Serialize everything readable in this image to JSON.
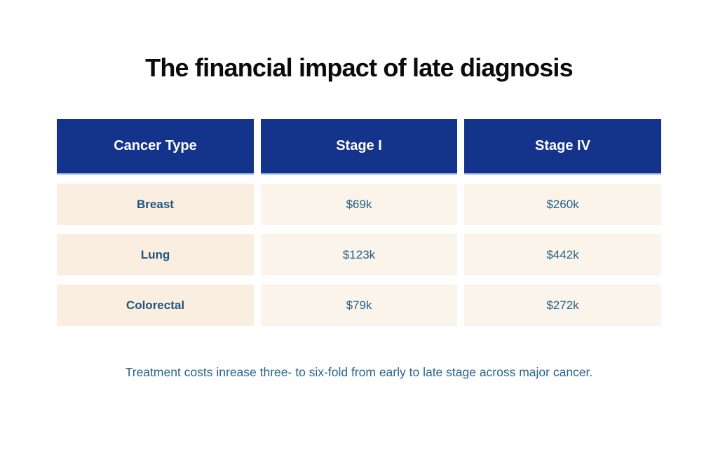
{
  "title": "The financial impact of late diagnosis",
  "table": {
    "headers": [
      "Cancer Type",
      "Stage I",
      "Stage IV"
    ],
    "rows": [
      {
        "label": "Breast",
        "stage1": "$69k",
        "stage4": "$260k"
      },
      {
        "label": "Lung",
        "stage1": "$123k",
        "stage4": "$442k"
      },
      {
        "label": "Colorectal",
        "stage1": "$79k",
        "stage4": "$272k"
      }
    ]
  },
  "footnote": "Treatment costs inrease three- to six-fold from early to late stage across major cancer.",
  "colors": {
    "header_background": "#14338b",
    "header_text": "#ffffff",
    "header_border_bottom": "#8aa5d6",
    "label_cell_background": "#faeee1",
    "value_cell_background": "#faf4eb",
    "label_text": "#1e567f",
    "value_text": "#236088",
    "footnote_text": "#29648f",
    "title_text": "#0b0b0b",
    "page_background": "#ffffff"
  },
  "chart_data": {
    "type": "table",
    "title": "The financial impact of late diagnosis",
    "columns": [
      "Cancer Type",
      "Stage I",
      "Stage IV"
    ],
    "rows": [
      [
        "Breast",
        "$69k",
        "$260k"
      ],
      [
        "Lung",
        "$123k",
        "$442k"
      ],
      [
        "Colorectal",
        "$79k",
        "$272k"
      ]
    ],
    "values_usd_thousands": {
      "Breast": {
        "stage_i": 69,
        "stage_iv": 260
      },
      "Lung": {
        "stage_i": 123,
        "stage_iv": 442
      },
      "Colorectal": {
        "stage_i": 79,
        "stage_iv": 272
      }
    },
    "caption": "Treatment costs inrease three- to six-fold from early to late stage across major cancer.",
    "legend_position": "none",
    "grid": false
  }
}
